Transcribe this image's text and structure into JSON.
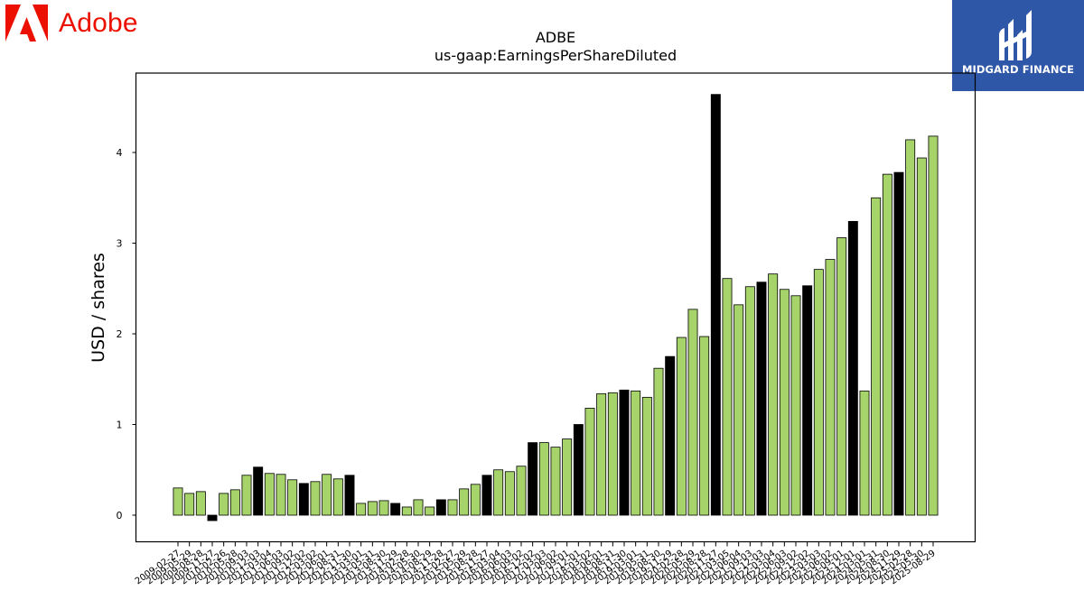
{
  "logos": {
    "adobe": {
      "name": "adobe-logo",
      "text": "Adobe",
      "color": "#eb1000"
    },
    "brand": {
      "name": "midgard-finance-logo",
      "text": "MIDGARD FINANCE",
      "background": "#2f57a8"
    }
  },
  "chart_data": {
    "type": "bar",
    "title": "ADBE",
    "subtitle": "us-gaap:EarningsPerShareDiluted",
    "xlabel": "",
    "ylabel": "USD / shares",
    "ylim": [
      -0.3,
      4.85
    ],
    "yticks": [
      0,
      1,
      2,
      3,
      4
    ],
    "grid": false,
    "legend": "none",
    "colors": {
      "quarter": "#a6d46a",
      "annual": "#000000",
      "edge": "#000000"
    },
    "categories": [
      "2009-02-27",
      "2009-05-29",
      "2009-08-28",
      "2009-11-27",
      "2010-02-26",
      "2010-05-28",
      "2010-09-03",
      "2010-12-03",
      "2011-03-04",
      "2011-06-03",
      "2011-09-02",
      "2011-12-02",
      "2012-03-02",
      "2012-06-01",
      "2012-08-31",
      "2012-11-30",
      "2013-03-01",
      "2013-05-31",
      "2013-08-30",
      "2013-11-29",
      "2014-02-28",
      "2014-05-30",
      "2014-08-29",
      "2014-11-28",
      "2015-02-27",
      "2015-05-29",
      "2015-08-28",
      "2015-11-27",
      "2016-03-04",
      "2016-06-03",
      "2016-09-02",
      "2016-12-02",
      "2017-03-03",
      "2017-06-02",
      "2017-09-01",
      "2017-12-01",
      "2018-03-02",
      "2018-06-01",
      "2018-08-31",
      "2018-11-30",
      "2019-03-01",
      "2019-05-31",
      "2019-08-30",
      "2019-11-29",
      "2020-02-28",
      "2020-05-29",
      "2020-08-28",
      "2020-11-27",
      "2021-03-05",
      "2021-06-04",
      "2021-09-03",
      "2021-12-03",
      "2022-03-04",
      "2022-06-03",
      "2022-09-02",
      "2022-12-02",
      "2023-03-03",
      "2023-06-02",
      "2023-09-01",
      "2023-12-01",
      "2024-03-01",
      "2024-05-31",
      "2024-08-30",
      "2024-11-29",
      "2025-02-28",
      "2025-05-30",
      "2025-08-29"
    ],
    "values": [
      0.3,
      0.24,
      0.26,
      -0.06,
      0.24,
      0.28,
      0.44,
      0.53,
      0.46,
      0.45,
      0.39,
      0.35,
      0.37,
      0.45,
      0.4,
      0.44,
      0.13,
      0.15,
      0.16,
      0.13,
      0.09,
      0.17,
      0.09,
      0.17,
      0.17,
      0.29,
      0.34,
      0.44,
      0.5,
      0.48,
      0.54,
      0.8,
      0.8,
      0.75,
      0.84,
      1.0,
      1.18,
      1.34,
      1.35,
      1.38,
      1.37,
      1.3,
      1.62,
      1.75,
      1.96,
      2.27,
      1.97,
      4.64,
      2.61,
      2.32,
      2.52,
      2.57,
      2.66,
      2.49,
      2.42,
      2.53,
      2.71,
      2.82,
      3.06,
      3.24,
      1.37,
      3.5,
      3.76,
      3.78,
      4.14,
      3.94,
      4.18
    ],
    "annual": [
      false,
      false,
      false,
      true,
      false,
      false,
      false,
      true,
      false,
      false,
      false,
      true,
      false,
      false,
      false,
      true,
      false,
      false,
      false,
      true,
      false,
      false,
      false,
      true,
      false,
      false,
      false,
      true,
      false,
      false,
      false,
      true,
      false,
      false,
      false,
      true,
      false,
      false,
      false,
      true,
      false,
      false,
      false,
      true,
      false,
      false,
      false,
      true,
      false,
      false,
      false,
      true,
      false,
      false,
      false,
      true,
      false,
      false,
      false,
      true,
      false,
      false,
      false,
      true,
      false,
      false,
      false
    ]
  }
}
